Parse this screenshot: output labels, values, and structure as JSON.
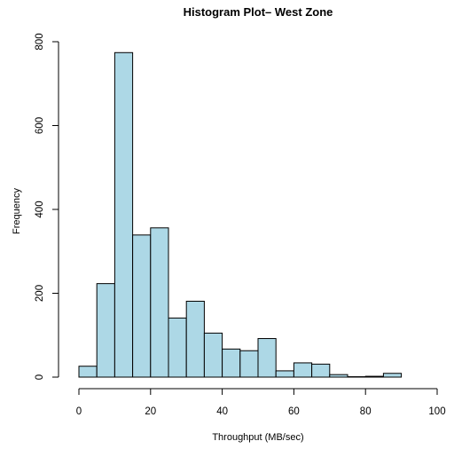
{
  "chart_data": {
    "type": "bar",
    "subtype": "histogram",
    "title": "Histogram Plot– West Zone",
    "xlabel": "Throughput (MB/sec)",
    "ylabel": "Frequency",
    "bin_width": 5,
    "bins": [
      {
        "start": 0,
        "end": 5,
        "value": 26
      },
      {
        "start": 5,
        "end": 10,
        "value": 223
      },
      {
        "start": 10,
        "end": 15,
        "value": 774
      },
      {
        "start": 15,
        "end": 20,
        "value": 339
      },
      {
        "start": 20,
        "end": 25,
        "value": 356
      },
      {
        "start": 25,
        "end": 30,
        "value": 141
      },
      {
        "start": 30,
        "end": 35,
        "value": 181
      },
      {
        "start": 35,
        "end": 40,
        "value": 105
      },
      {
        "start": 40,
        "end": 45,
        "value": 67
      },
      {
        "start": 45,
        "end": 50,
        "value": 63
      },
      {
        "start": 50,
        "end": 55,
        "value": 92
      },
      {
        "start": 55,
        "end": 60,
        "value": 15
      },
      {
        "start": 60,
        "end": 65,
        "value": 34
      },
      {
        "start": 65,
        "end": 70,
        "value": 31
      },
      {
        "start": 70,
        "end": 75,
        "value": 6
      },
      {
        "start": 75,
        "end": 80,
        "value": 1
      },
      {
        "start": 80,
        "end": 85,
        "value": 2
      },
      {
        "start": 85,
        "end": 90,
        "value": 9
      }
    ],
    "xlim": [
      0,
      100
    ],
    "ylim": [
      0,
      800
    ],
    "x_ticks": [
      "0",
      "20",
      "40",
      "60",
      "80",
      "100"
    ],
    "y_ticks": [
      "0",
      "200",
      "400",
      "600",
      "800"
    ],
    "bar_color": "#add8e6",
    "edge_color": "#000000",
    "grid": false,
    "legend": "none"
  }
}
